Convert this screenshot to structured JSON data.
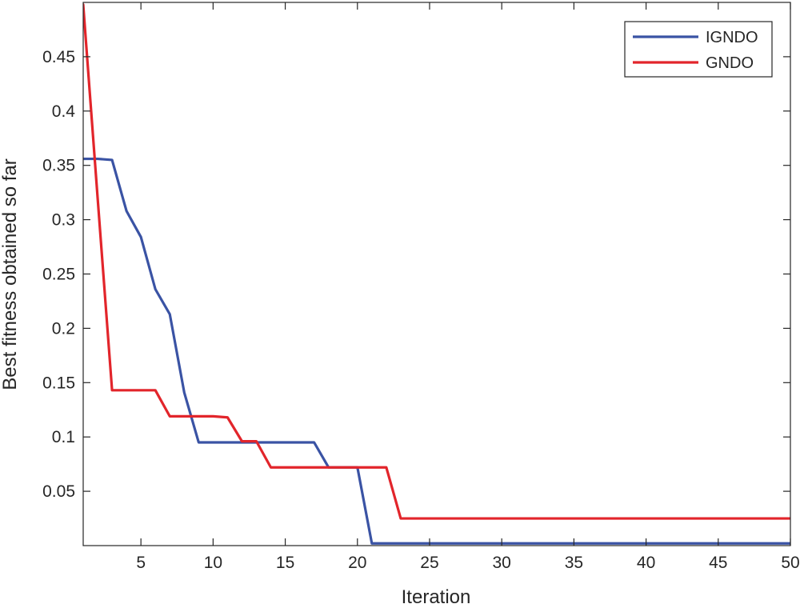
{
  "chart_data": {
    "type": "line",
    "title": "",
    "xlabel": "Iteration",
    "ylabel": "Best fitness obtained so far",
    "xlim": [
      1,
      50
    ],
    "ylim": [
      0,
      0.5
    ],
    "x_ticks": [
      5,
      10,
      15,
      20,
      25,
      30,
      35,
      40,
      45,
      50
    ],
    "y_ticks": [
      0.05,
      0.1,
      0.15,
      0.2,
      0.25,
      0.3,
      0.35,
      0.4,
      0.45
    ],
    "grid": false,
    "legend_position": "top-right",
    "series": [
      {
        "name": "IGNDO",
        "color": "#3a53a4",
        "x": [
          1,
          2,
          3,
          4,
          5,
          6,
          7,
          8,
          9,
          10,
          11,
          12,
          13,
          14,
          15,
          16,
          17,
          18,
          19,
          20,
          21,
          22,
          23,
          24,
          25,
          26,
          27,
          28,
          29,
          30,
          31,
          32,
          33,
          34,
          35,
          36,
          37,
          38,
          39,
          40,
          41,
          42,
          43,
          44,
          45,
          46,
          47,
          48,
          49,
          50
        ],
        "y": [
          0.356,
          0.356,
          0.355,
          0.308,
          0.284,
          0.236,
          0.213,
          0.141,
          0.095,
          0.095,
          0.095,
          0.095,
          0.095,
          0.095,
          0.095,
          0.095,
          0.095,
          0.072,
          0.072,
          0.072,
          0.002,
          0.002,
          0.002,
          0.002,
          0.002,
          0.002,
          0.002,
          0.002,
          0.002,
          0.002,
          0.002,
          0.002,
          0.002,
          0.002,
          0.002,
          0.002,
          0.002,
          0.002,
          0.002,
          0.002,
          0.002,
          0.002,
          0.002,
          0.002,
          0.002,
          0.002,
          0.002,
          0.002,
          0.002,
          0.002
        ]
      },
      {
        "name": "GNDO",
        "color": "#e2252b",
        "x": [
          1,
          2,
          3,
          4,
          5,
          6,
          7,
          8,
          9,
          10,
          11,
          12,
          13,
          14,
          15,
          16,
          17,
          18,
          19,
          20,
          21,
          22,
          23,
          24,
          25,
          26,
          27,
          28,
          29,
          30,
          31,
          32,
          33,
          34,
          35,
          36,
          37,
          38,
          39,
          40,
          41,
          42,
          43,
          44,
          45,
          46,
          47,
          48,
          49,
          50
        ],
        "y": [
          0.498,
          0.32,
          0.143,
          0.143,
          0.143,
          0.143,
          0.119,
          0.119,
          0.119,
          0.119,
          0.118,
          0.096,
          0.096,
          0.072,
          0.072,
          0.072,
          0.072,
          0.072,
          0.072,
          0.072,
          0.072,
          0.072,
          0.025,
          0.025,
          0.025,
          0.025,
          0.025,
          0.025,
          0.025,
          0.025,
          0.025,
          0.025,
          0.025,
          0.025,
          0.025,
          0.025,
          0.025,
          0.025,
          0.025,
          0.025,
          0.025,
          0.025,
          0.025,
          0.025,
          0.025,
          0.025,
          0.025,
          0.025,
          0.025,
          0.025
        ]
      }
    ]
  }
}
